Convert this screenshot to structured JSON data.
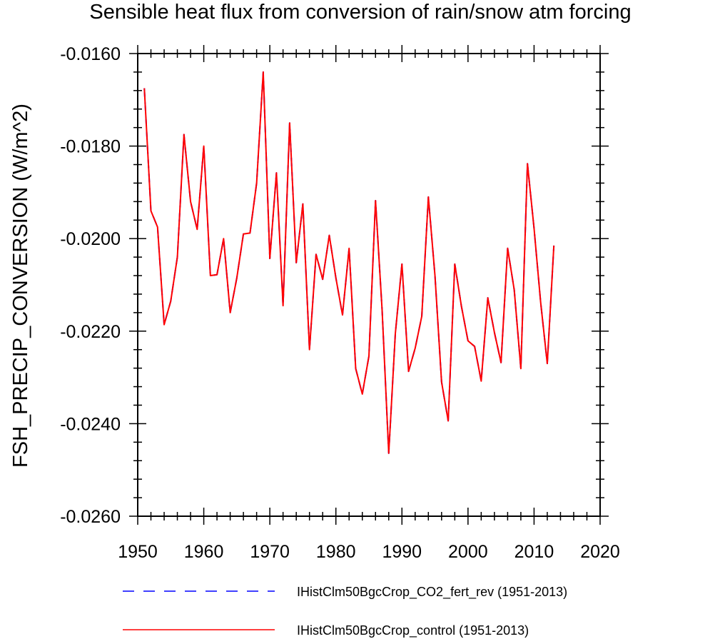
{
  "chart_data": {
    "type": "line",
    "title": "Sensible heat flux from conversion of rain/snow atm forcing",
    "xlabel": "",
    "ylabel": "FSH_PRECIP_CONVERSION  (W/m^2)",
    "xlim": [
      1950,
      2020
    ],
    "ylim": [
      -0.026,
      -0.016
    ],
    "x_ticks": [
      1950,
      1960,
      1970,
      1980,
      1990,
      2000,
      2010,
      2020
    ],
    "x_tick_labels": [
      "1950",
      "1960",
      "1970",
      "1980",
      "1990",
      "2000",
      "2010",
      "2020"
    ],
    "y_ticks": [
      -0.026,
      -0.024,
      -0.022,
      -0.02,
      -0.018,
      -0.016
    ],
    "y_tick_labels": [
      "-0.0260",
      "-0.0240",
      "-0.0220",
      "-0.0200",
      "-0.0180",
      "-0.0160"
    ],
    "grid": false,
    "legend_position": "bottom",
    "x": [
      1951,
      1952,
      1953,
      1954,
      1955,
      1956,
      1957,
      1958,
      1959,
      1960,
      1961,
      1962,
      1963,
      1964,
      1965,
      1966,
      1967,
      1968,
      1969,
      1970,
      1971,
      1972,
      1973,
      1974,
      1975,
      1976,
      1977,
      1978,
      1979,
      1980,
      1981,
      1982,
      1983,
      1984,
      1985,
      1986,
      1987,
      1988,
      1989,
      1990,
      1991,
      1992,
      1993,
      1994,
      1995,
      1996,
      1997,
      1998,
      1999,
      2000,
      2001,
      2002,
      2003,
      2004,
      2005,
      2006,
      2007,
      2008,
      2009,
      2010,
      2011,
      2012,
      2013
    ],
    "series": [
      {
        "name": "IHistClm50BgcCrop_CO2_fert_rev (1951-2013)",
        "color": "#0000ff",
        "dash": "dashed",
        "values": [
          -0.01675,
          -0.0194,
          -0.01975,
          -0.02186,
          -0.02135,
          -0.0204,
          -0.01775,
          -0.0192,
          -0.0198,
          -0.018,
          -0.0208,
          -0.02078,
          -0.02,
          -0.0216,
          -0.02085,
          -0.0199,
          -0.01988,
          -0.0188,
          -0.0164,
          -0.02043,
          -0.01858,
          -0.02145,
          -0.0175,
          -0.02052,
          -0.01925,
          -0.0224,
          -0.02034,
          -0.02088,
          -0.01993,
          -0.02085,
          -0.02165,
          -0.02021,
          -0.02281,
          -0.02336,
          -0.02254,
          -0.01918,
          -0.02155,
          -0.02464,
          -0.02205,
          -0.02055,
          -0.02287,
          -0.02237,
          -0.02168,
          -0.0191,
          -0.0208,
          -0.0231,
          -0.02394,
          -0.02055,
          -0.02146,
          -0.02221,
          -0.02233,
          -0.02308,
          -0.02128,
          -0.02203,
          -0.02268,
          -0.02021,
          -0.02111,
          -0.02281,
          -0.01838,
          -0.01978,
          -0.02138,
          -0.0227,
          -0.02015
        ]
      },
      {
        "name": "IHistClm50BgcCrop_control (1951-2013)",
        "color": "#ff0000",
        "dash": "solid",
        "values": [
          -0.01675,
          -0.0194,
          -0.01975,
          -0.02186,
          -0.02135,
          -0.0204,
          -0.01775,
          -0.0192,
          -0.0198,
          -0.018,
          -0.0208,
          -0.02078,
          -0.02,
          -0.0216,
          -0.02085,
          -0.0199,
          -0.01988,
          -0.0188,
          -0.0164,
          -0.02043,
          -0.01858,
          -0.02145,
          -0.0175,
          -0.02052,
          -0.01925,
          -0.0224,
          -0.02034,
          -0.02088,
          -0.01993,
          -0.02085,
          -0.02165,
          -0.02021,
          -0.02281,
          -0.02336,
          -0.02254,
          -0.01918,
          -0.02155,
          -0.02464,
          -0.02205,
          -0.02055,
          -0.02287,
          -0.02237,
          -0.02168,
          -0.0191,
          -0.0208,
          -0.0231,
          -0.02394,
          -0.02055,
          -0.02146,
          -0.02221,
          -0.02233,
          -0.02308,
          -0.02128,
          -0.02203,
          -0.02268,
          -0.02021,
          -0.02111,
          -0.02281,
          -0.01838,
          -0.01978,
          -0.02138,
          -0.0227,
          -0.02015
        ]
      }
    ]
  }
}
